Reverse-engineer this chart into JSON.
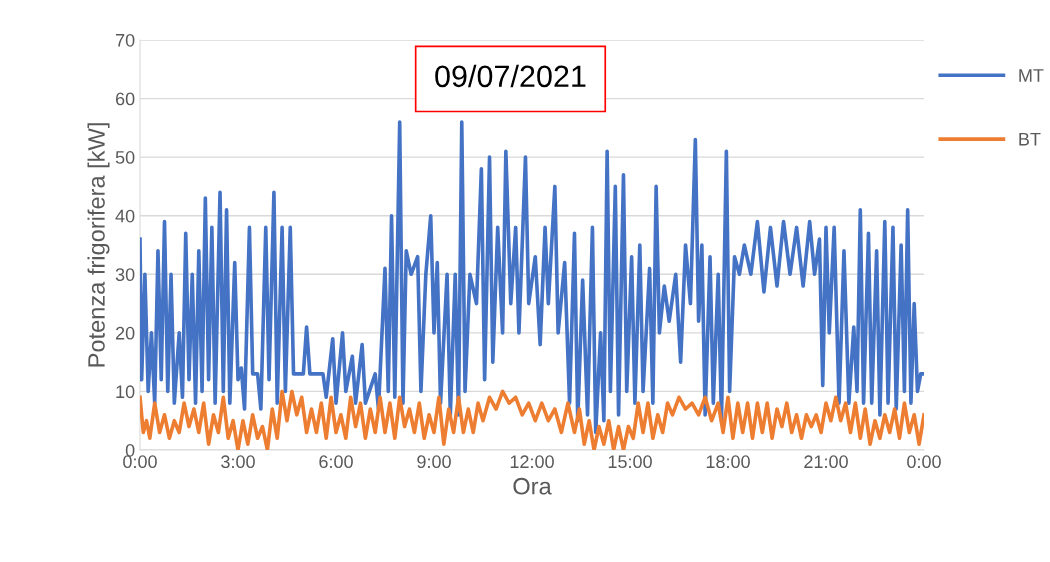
{
  "chart_data": {
    "type": "line",
    "xlabel": "Ora",
    "ylabel": "Potenza frigorifera [kW]",
    "annotations": [
      "09/07/2021"
    ],
    "xlim": [
      0,
      24
    ],
    "xticks": [
      {
        "value": 0,
        "label": "0:00"
      },
      {
        "value": 3,
        "label": "3:00"
      },
      {
        "value": 6,
        "label": "6:00"
      },
      {
        "value": 9,
        "label": "9:00"
      },
      {
        "value": 12,
        "label": "12:00"
      },
      {
        "value": 15,
        "label": "15:00"
      },
      {
        "value": 18,
        "label": "18:00"
      },
      {
        "value": 21,
        "label": "21:00"
      },
      {
        "value": 24,
        "label": "0:00"
      }
    ],
    "ylim": [
      0,
      70
    ],
    "yticks": [
      0,
      10,
      20,
      30,
      40,
      50,
      60,
      70
    ],
    "grid": "y",
    "legend": "right",
    "marker": "none",
    "line_style": "solid",
    "series": [
      {
        "name": "MT",
        "color": "#4472c4",
        "x": [
          0,
          0.05,
          0.15,
          0.25,
          0.35,
          0.45,
          0.55,
          0.65,
          0.75,
          0.85,
          0.95,
          1.05,
          1.2,
          1.3,
          1.4,
          1.5,
          1.6,
          1.7,
          1.8,
          1.9,
          2.0,
          2.1,
          2.2,
          2.3,
          2.45,
          2.55,
          2.65,
          2.75,
          2.9,
          3.0,
          3.1,
          3.2,
          3.35,
          3.45,
          3.6,
          3.7,
          3.85,
          3.95,
          4.1,
          4.2,
          4.35,
          4.45,
          4.6,
          4.7,
          5.0,
          5.1,
          5.2,
          5.6,
          5.7,
          5.9,
          6.0,
          6.2,
          6.3,
          6.5,
          6.6,
          6.8,
          6.9,
          7.2,
          7.3,
          7.5,
          7.6,
          7.7,
          7.8,
          7.95,
          8.05,
          8.15,
          8.3,
          8.5,
          8.6,
          8.75,
          8.9,
          9.0,
          9.1,
          9.2,
          9.4,
          9.5,
          9.65,
          9.75,
          9.85,
          9.95,
          10.1,
          10.3,
          10.45,
          10.55,
          10.7,
          10.8,
          10.95,
          11.1,
          11.2,
          11.35,
          11.5,
          11.6,
          11.8,
          11.9,
          12.1,
          12.25,
          12.4,
          12.5,
          12.7,
          12.8,
          13.0,
          13.15,
          13.3,
          13.4,
          13.55,
          13.7,
          13.85,
          13.95,
          14.1,
          14.2,
          14.3,
          14.4,
          14.55,
          14.65,
          14.8,
          14.9,
          15.05,
          15.15,
          15.3,
          15.4,
          15.6,
          15.7,
          15.8,
          15.9,
          16.05,
          16.2,
          16.4,
          16.55,
          16.7,
          16.85,
          17.0,
          17.1,
          17.2,
          17.3,
          17.45,
          17.55,
          17.7,
          17.8,
          17.95,
          18.05,
          18.2,
          18.35,
          18.5,
          18.7,
          18.9,
          19.1,
          19.3,
          19.5,
          19.7,
          19.9,
          20.1,
          20.3,
          20.5,
          20.65,
          20.8,
          20.9,
          21.0,
          21.1,
          21.25,
          21.4,
          21.55,
          21.7,
          21.85,
          21.95,
          22.05,
          22.15,
          22.3,
          22.4,
          22.55,
          22.65,
          22.8,
          22.9,
          23.05,
          23.15,
          23.3,
          23.4,
          23.5,
          23.6,
          23.7,
          23.8,
          23.9,
          24.0
        ],
        "values": [
          36,
          12,
          30,
          10,
          20,
          8,
          34,
          12,
          39,
          10,
          30,
          8,
          20,
          9,
          37,
          12,
          30,
          8,
          34,
          10,
          43,
          12,
          38,
          8,
          44,
          10,
          41,
          8,
          32,
          12,
          14,
          7,
          38,
          13,
          13,
          7,
          38,
          12,
          44,
          8,
          38,
          10,
          38,
          13,
          13,
          21,
          13,
          13,
          9,
          19,
          8,
          20,
          10,
          16,
          8,
          18,
          8,
          13,
          7,
          31,
          10,
          40,
          9,
          56,
          8,
          34,
          30,
          33,
          10,
          30,
          40,
          20,
          32,
          8,
          30,
          6,
          30,
          6,
          56,
          10,
          30,
          25,
          48,
          12,
          50,
          15,
          38,
          20,
          51,
          25,
          38,
          20,
          50,
          25,
          33,
          18,
          38,
          25,
          45,
          20,
          32,
          8,
          37,
          5,
          29,
          6,
          38,
          3,
          20,
          5,
          51,
          10,
          45,
          6,
          47,
          10,
          33,
          8,
          35,
          10,
          31,
          8,
          45,
          20,
          28,
          22,
          30,
          15,
          35,
          25,
          53,
          22,
          35,
          6,
          33,
          8,
          30,
          5,
          51,
          10,
          33,
          30,
          35,
          30,
          39,
          27,
          38,
          28,
          39,
          30,
          38,
          28,
          39,
          30,
          36,
          11,
          38,
          20,
          38,
          8,
          34,
          8,
          21,
          10,
          41,
          8,
          37,
          8,
          34,
          6,
          39,
          8,
          38,
          7,
          35,
          10,
          41,
          8,
          25,
          10,
          13,
          13
        ]
      },
      {
        "name": "BT",
        "color": "#ed7d31",
        "x": [
          0,
          0.1,
          0.2,
          0.3,
          0.45,
          0.6,
          0.75,
          0.9,
          1.05,
          1.2,
          1.35,
          1.5,
          1.65,
          1.8,
          1.95,
          2.1,
          2.25,
          2.4,
          2.55,
          2.7,
          2.85,
          3.0,
          3.15,
          3.3,
          3.45,
          3.6,
          3.75,
          3.9,
          4.05,
          4.2,
          4.35,
          4.5,
          4.65,
          4.8,
          4.95,
          5.1,
          5.25,
          5.4,
          5.55,
          5.7,
          5.85,
          6.0,
          6.15,
          6.3,
          6.45,
          6.6,
          6.75,
          6.9,
          7.05,
          7.2,
          7.35,
          7.5,
          7.65,
          7.8,
          7.95,
          8.1,
          8.25,
          8.4,
          8.55,
          8.7,
          8.85,
          9.0,
          9.15,
          9.3,
          9.45,
          9.6,
          9.75,
          9.9,
          10.05,
          10.2,
          10.35,
          10.5,
          10.7,
          10.9,
          11.1,
          11.3,
          11.5,
          11.7,
          11.9,
          12.1,
          12.3,
          12.5,
          12.7,
          12.9,
          13.1,
          13.3,
          13.45,
          13.6,
          13.75,
          13.9,
          14.05,
          14.2,
          14.35,
          14.5,
          14.65,
          14.8,
          14.95,
          15.1,
          15.25,
          15.4,
          15.55,
          15.7,
          15.85,
          16.0,
          16.15,
          16.3,
          16.5,
          16.7,
          16.9,
          17.1,
          17.3,
          17.5,
          17.7,
          17.85,
          18.0,
          18.15,
          18.3,
          18.45,
          18.6,
          18.75,
          18.9,
          19.05,
          19.2,
          19.35,
          19.5,
          19.65,
          19.8,
          19.95,
          20.1,
          20.25,
          20.4,
          20.55,
          20.7,
          20.85,
          21.0,
          21.15,
          21.3,
          21.45,
          21.6,
          21.75,
          21.9,
          22.05,
          22.2,
          22.35,
          22.5,
          22.65,
          22.8,
          22.95,
          23.1,
          23.25,
          23.4,
          23.55,
          23.7,
          23.85,
          24.0
        ],
        "values": [
          9,
          3,
          5,
          2,
          8,
          3,
          6,
          2,
          5,
          3,
          8,
          4,
          7,
          3,
          8,
          1,
          6,
          3,
          9,
          2,
          5,
          0,
          5,
          1,
          6,
          2,
          4,
          0,
          7,
          2,
          10,
          5,
          10,
          6,
          9,
          3,
          7,
          3,
          8,
          2,
          9,
          3,
          6,
          2,
          9,
          4,
          8,
          2,
          7,
          3,
          9,
          3,
          8,
          2,
          9,
          4,
          7,
          3,
          8,
          2,
          6,
          3,
          9,
          1,
          7,
          3,
          9,
          3,
          7,
          3,
          8,
          5,
          9,
          7,
          10,
          8,
          9,
          6,
          8,
          5,
          8,
          5,
          7,
          3,
          8,
          3,
          7,
          1,
          5,
          0,
          4,
          1,
          5,
          0,
          4,
          0,
          4,
          2,
          8,
          3,
          8,
          2,
          6,
          3,
          8,
          6,
          9,
          7,
          8,
          6,
          9,
          5,
          8,
          3,
          9,
          2,
          8,
          3,
          8,
          2,
          8,
          3,
          8,
          2,
          7,
          4,
          8,
          3,
          6,
          2,
          6,
          4,
          6,
          3,
          8,
          5,
          9,
          5,
          8,
          3,
          8,
          2,
          7,
          1,
          5,
          2,
          6,
          3,
          7,
          2,
          8,
          3,
          6,
          1,
          6
        ]
      }
    ]
  }
}
